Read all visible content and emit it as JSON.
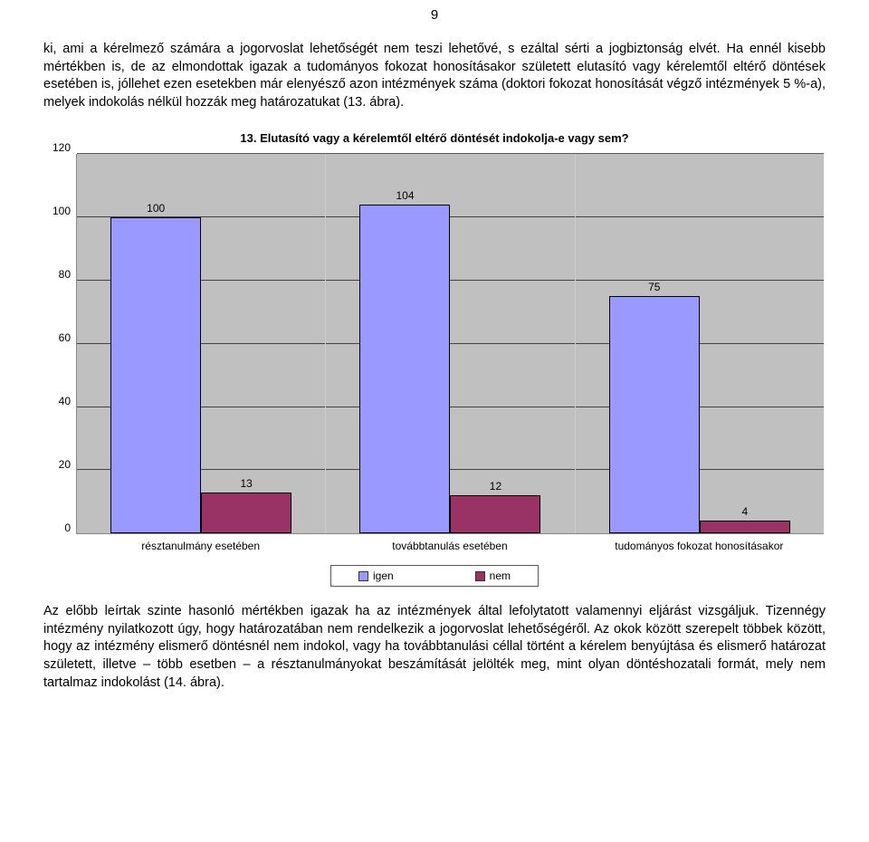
{
  "page_number": "9",
  "paragraph_top": "ki, ami a kérelmező számára a jogorvoslat lehetőségét nem teszi lehetővé, s ezáltal sérti a jogbiztonság elvét. Ha ennél kisebb mértékben is, de az elmondottak igazak a tudományos fokozat honosításakor született elutasító vagy kérelemtől eltérő döntések esetében is, jóllehet ezen esetekben már elenyésző azon intézmények száma (doktori fokozat honosítását végző intézmények 5 %-a), melyek indokolás nélkül hozzák meg határozatukat (13. ábra).",
  "chart": {
    "title": "13. Elutasító vagy a kérelemtől eltérő döntését indokolja-e vagy sem?",
    "y_max": 120,
    "y_ticks": [
      120,
      100,
      80,
      60,
      40,
      20,
      0
    ],
    "background_color": "#c0c0c0",
    "grid_color": "#000000",
    "categories": [
      {
        "label": "résztanulmány esetében",
        "values": [
          100,
          13
        ]
      },
      {
        "label": "továbbtanulás esetében",
        "values": [
          104,
          12
        ]
      },
      {
        "label": "tudományos fokozat honosításakor",
        "values": [
          75,
          4
        ]
      }
    ],
    "series": [
      {
        "name": "igen",
        "color": "#9999ff"
      },
      {
        "name": "nem",
        "color": "#993366"
      }
    ]
  },
  "paragraph_bottom": "Az előbb leírtak szinte hasonló mértékben igazak ha az intézmények által lefolytatott valamennyi eljárást vizsgáljuk. Tizennégy intézmény nyilatkozott úgy, hogy határozatában nem rendelkezik a jogorvoslat lehetőségéről. Az okok között szerepelt többek között, hogy az intézmény elismerő döntésnél nem indokol, vagy ha továbbtanulási céllal történt a kérelem benyújtása és elismerő határozat született, illetve – több esetben – a résztanulmányokat beszámítását jelölték meg, mint olyan döntéshozatali formát, mely nem tartalmaz indokolást (14. ábra)."
}
